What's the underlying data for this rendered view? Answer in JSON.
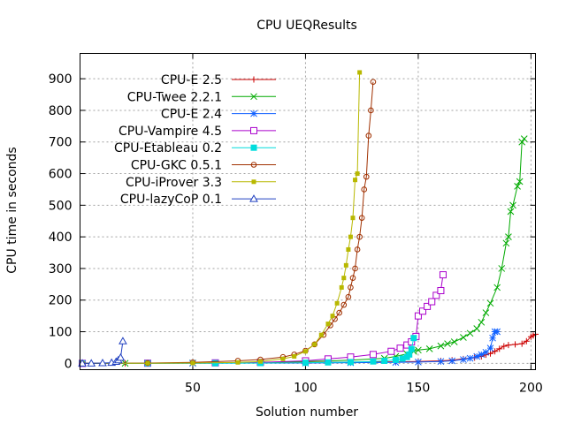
{
  "chart_data": {
    "type": "line",
    "title": "CPU UEQResults",
    "xlabel": "Solution number",
    "ylabel": "CPU time in seconds",
    "xlim": [
      0,
      202
    ],
    "ylim": [
      -20,
      980
    ],
    "xticks": [
      50,
      100,
      150,
      200
    ],
    "yticks": [
      0,
      100,
      200,
      300,
      400,
      500,
      600,
      700,
      800,
      900
    ],
    "grid": true,
    "legend_position": "top-left",
    "series": [
      {
        "name": "CPU-E 2.5",
        "color": "#cc0000",
        "marker": "plus",
        "points": [
          [
            1,
            0
          ],
          [
            20,
            0.2
          ],
          [
            50,
            1
          ],
          [
            80,
            2
          ],
          [
            100,
            3
          ],
          [
            120,
            4
          ],
          [
            140,
            5
          ],
          [
            150,
            6
          ],
          [
            160,
            8
          ],
          [
            165,
            10
          ],
          [
            170,
            14
          ],
          [
            175,
            18
          ],
          [
            178,
            22
          ],
          [
            180,
            27
          ],
          [
            182,
            31
          ],
          [
            184,
            38
          ],
          [
            186,
            46
          ],
          [
            188,
            54
          ],
          [
            190,
            58
          ],
          [
            193,
            60
          ],
          [
            196,
            62
          ],
          [
            198,
            70
          ],
          [
            200,
            84
          ],
          [
            201,
            88
          ],
          [
            202,
            92
          ]
        ]
      },
      {
        "name": "CPU-Twee 2.2.1",
        "color": "#00aa00",
        "marker": "x",
        "points": [
          [
            1,
            0
          ],
          [
            20,
            0.3
          ],
          [
            50,
            1
          ],
          [
            80,
            3
          ],
          [
            100,
            6
          ],
          [
            120,
            10
          ],
          [
            135,
            16
          ],
          [
            140,
            22
          ],
          [
            145,
            30
          ],
          [
            148,
            38
          ],
          [
            150,
            42
          ],
          [
            155,
            46
          ],
          [
            160,
            55
          ],
          [
            163,
            62
          ],
          [
            166,
            68
          ],
          [
            170,
            82
          ],
          [
            173,
            95
          ],
          [
            176,
            110
          ],
          [
            178,
            130
          ],
          [
            180,
            160
          ],
          [
            182,
            190
          ],
          [
            185,
            240
          ],
          [
            187,
            300
          ],
          [
            189,
            380
          ],
          [
            190,
            400
          ],
          [
            191,
            480
          ],
          [
            192,
            500
          ],
          [
            194,
            560
          ],
          [
            195,
            575
          ],
          [
            196,
            700
          ],
          [
            197,
            710
          ]
        ]
      },
      {
        "name": "CPU-E 2.4",
        "color": "#1060ff",
        "marker": "star",
        "points": [
          [
            1,
            0
          ],
          [
            50,
            0.5
          ],
          [
            100,
            1
          ],
          [
            120,
            2
          ],
          [
            140,
            3
          ],
          [
            150,
            4
          ],
          [
            160,
            6
          ],
          [
            165,
            8
          ],
          [
            170,
            12
          ],
          [
            173,
            16
          ],
          [
            176,
            22
          ],
          [
            178,
            28
          ],
          [
            180,
            35
          ],
          [
            182,
            48
          ],
          [
            183,
            80
          ],
          [
            184,
            100
          ],
          [
            185,
            100
          ]
        ]
      },
      {
        "name": "CPU-Vampire 4.5",
        "color": "#aa00cc",
        "marker": "square-open",
        "points": [
          [
            1,
            0
          ],
          [
            30,
            0.5
          ],
          [
            60,
            1.5
          ],
          [
            80,
            3
          ],
          [
            100,
            8
          ],
          [
            110,
            14
          ],
          [
            120,
            20
          ],
          [
            130,
            28
          ],
          [
            138,
            38
          ],
          [
            142,
            48
          ],
          [
            145,
            58
          ],
          [
            147,
            68
          ],
          [
            149,
            85
          ],
          [
            150,
            150
          ],
          [
            152,
            165
          ],
          [
            154,
            180
          ],
          [
            156,
            195
          ],
          [
            158,
            215
          ],
          [
            160,
            230
          ],
          [
            161,
            280
          ]
        ]
      },
      {
        "name": "CPU-Etableau 0.2",
        "color": "#00dddd",
        "marker": "square",
        "points": [
          [
            1,
            0
          ],
          [
            30,
            0.2
          ],
          [
            60,
            0.5
          ],
          [
            80,
            1
          ],
          [
            100,
            2
          ],
          [
            110,
            3
          ],
          [
            120,
            4
          ],
          [
            130,
            6
          ],
          [
            135,
            8
          ],
          [
            140,
            11
          ],
          [
            143,
            15
          ],
          [
            145,
            20
          ],
          [
            146,
            28
          ],
          [
            147,
            45
          ],
          [
            148,
            80
          ]
        ]
      },
      {
        "name": "CPU-GKC 0.5.1",
        "color": "#a03000",
        "marker": "circle-open",
        "points": [
          [
            1,
            0
          ],
          [
            30,
            1
          ],
          [
            50,
            3
          ],
          [
            70,
            8
          ],
          [
            80,
            12
          ],
          [
            90,
            20
          ],
          [
            95,
            28
          ],
          [
            100,
            40
          ],
          [
            104,
            60
          ],
          [
            108,
            90
          ],
          [
            111,
            120
          ],
          [
            113,
            140
          ],
          [
            115,
            160
          ],
          [
            117,
            185
          ],
          [
            119,
            210
          ],
          [
            120,
            240
          ],
          [
            121,
            270
          ],
          [
            122,
            300
          ],
          [
            123,
            360
          ],
          [
            124,
            400
          ],
          [
            125,
            460
          ],
          [
            126,
            550
          ],
          [
            127,
            590
          ],
          [
            128,
            720
          ],
          [
            129,
            800
          ],
          [
            130,
            890
          ]
        ]
      },
      {
        "name": "CPU-iProver 3.3",
        "color": "#b8b800",
        "marker": "square-small",
        "points": [
          [
            1,
            0
          ],
          [
            30,
            0.5
          ],
          [
            50,
            1
          ],
          [
            70,
            3
          ],
          [
            80,
            6
          ],
          [
            90,
            14
          ],
          [
            95,
            22
          ],
          [
            100,
            38
          ],
          [
            104,
            60
          ],
          [
            107,
            90
          ],
          [
            110,
            125
          ],
          [
            112,
            150
          ],
          [
            114,
            190
          ],
          [
            116,
            240
          ],
          [
            117,
            270
          ],
          [
            118,
            310
          ],
          [
            119,
            360
          ],
          [
            120,
            400
          ],
          [
            121,
            460
          ],
          [
            122,
            580
          ],
          [
            123,
            600
          ],
          [
            124,
            920
          ]
        ]
      },
      {
        "name": "CPU-lazyCoP 0.1",
        "color": "#2040c0",
        "marker": "triangle-open",
        "points": [
          [
            1,
            0
          ],
          [
            5,
            0
          ],
          [
            10,
            1
          ],
          [
            14,
            2
          ],
          [
            16,
            5
          ],
          [
            17,
            10
          ],
          [
            18,
            18
          ],
          [
            19,
            70
          ]
        ]
      }
    ]
  }
}
